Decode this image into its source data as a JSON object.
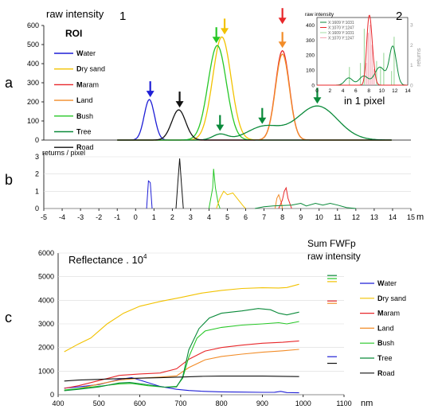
{
  "panel_labels": {
    "a": "a",
    "b": "b",
    "c": "c",
    "one": "1",
    "two": "2"
  },
  "roi_title": "ROI",
  "roi_legend": [
    {
      "first": "W",
      "rest": "ater",
      "color": "#1f1fd6"
    },
    {
      "first": "D",
      "rest": "ry sand",
      "color": "#f2c200"
    },
    {
      "first": "M",
      "rest": "aram",
      "color": "#e8272a"
    },
    {
      "first": "L",
      "rest": "and",
      "color": "#f28c28"
    },
    {
      "first": "B",
      "rest": "ush",
      "color": "#26c726"
    },
    {
      "first": "T",
      "rest": "ree",
      "color": "#0a8a3a"
    },
    {
      "first": "R",
      "rest": "oad",
      "color": "#111111"
    }
  ],
  "sum_title_line1": "Sum FWFp",
  "sum_title_line2": "raw intensity",
  "inset_caption": "in 1 pixel",
  "chart_data": [
    {
      "id": "a",
      "type": "line",
      "ylabel": "raw intensity",
      "xlim": [
        -5,
        15
      ],
      "ylim": [
        0,
        600
      ],
      "yticks": [
        0,
        100,
        200,
        300,
        400,
        500,
        600
      ],
      "series": [
        {
          "name": "Water",
          "color": "#1f1fd6",
          "peaks": [
            [
              0.75,
              212,
              0.28
            ]
          ]
        },
        {
          "name": "Dry sand",
          "color": "#f2c200",
          "peaks": [
            [
              4.7,
              540,
              0.5
            ]
          ]
        },
        {
          "name": "Maram",
          "color": "#e8272a",
          "peaks": [
            [
              8.0,
              468,
              0.38
            ]
          ]
        },
        {
          "name": "Land",
          "color": "#f28c28",
          "peaks": [
            [
              8.0,
              450,
              0.38
            ]
          ]
        },
        {
          "name": "Bush",
          "color": "#26c726",
          "peaks": [
            [
              4.45,
              495,
              0.5
            ]
          ]
        },
        {
          "name": "Tree",
          "color": "#0a8a3a",
          "peaks": [
            [
              4.6,
              30,
              0.4
            ],
            [
              7.0,
              70,
              0.9
            ],
            [
              9.9,
              178,
              1.1
            ]
          ]
        },
        {
          "name": "Road",
          "color": "#111111",
          "peaks": [
            [
              2.35,
              158,
              0.38
            ]
          ]
        }
      ],
      "arrows": [
        {
          "x": 0.8,
          "y": 212,
          "color": "#1f1fd6"
        },
        {
          "x": 2.4,
          "y": 158,
          "color": "#111111"
        },
        {
          "x": 4.4,
          "y": 495,
          "color": "#26c726"
        },
        {
          "x": 4.85,
          "y": 540,
          "color": "#f2c200"
        },
        {
          "x": 8.0,
          "y": 595,
          "color": "#e8272a"
        },
        {
          "x": 8.0,
          "y": 470,
          "color": "#f28c28"
        },
        {
          "x": 4.6,
          "y": 35,
          "color": "#0a8a3a"
        },
        {
          "x": 6.9,
          "y": 72,
          "color": "#0a8a3a"
        },
        {
          "x": 9.9,
          "y": 178,
          "color": "#0a8a3a"
        }
      ]
    },
    {
      "id": "inset",
      "type": "line",
      "ylabel": "raw intensity",
      "ylabel2": "returns",
      "xlim": [
        0,
        14
      ],
      "ylim": [
        0,
        450
      ],
      "y2lim": [
        0,
        3
      ],
      "xticks": [
        0,
        2,
        4,
        6,
        8,
        10,
        12,
        14
      ],
      "yticks": [
        0,
        100,
        200,
        300,
        400
      ],
      "y2ticks": [
        0,
        1,
        2,
        3
      ],
      "legend": [
        {
          "name": "X:1609 Y:1031",
          "color": "#0a8a3a"
        },
        {
          "name": "X:1070 Y:1247",
          "color": "#e8272a"
        },
        {
          "name": "X:1609 Y:1031",
          "color": "#a4dca4"
        },
        {
          "name": "X:1070 Y:1247",
          "color": "#f4a8b4"
        }
      ],
      "series": [
        {
          "name": "X:1609 Y:1031",
          "color": "#0a8a3a",
          "peaks": [
            [
              4.9,
              48,
              0.6
            ],
            [
              7.2,
              60,
              0.7
            ],
            [
              9.7,
              120,
              0.8
            ],
            [
              11.7,
              255,
              0.55
            ]
          ]
        },
        {
          "name": "X:1070 Y:1247",
          "color": "#e8272a",
          "peaks": [
            [
              8.0,
              310,
              0.35
            ],
            [
              8.4,
              200,
              0.4
            ],
            [
              7.7,
              40,
              0.3
            ]
          ]
        }
      ],
      "returns_pink": [
        [
          7.6,
          1.1
        ],
        [
          7.9,
          2.6
        ],
        [
          8.2,
          3.0
        ],
        [
          8.5,
          2.0
        ],
        [
          8.8,
          0.8
        ]
      ],
      "returns_green": [
        [
          5.0,
          0.9
        ],
        [
          6.7,
          1.1
        ],
        [
          7.3,
          2.8
        ],
        [
          9.2,
          1.2
        ],
        [
          9.8,
          0.9
        ],
        [
          10.3,
          1.6
        ],
        [
          11.5,
          0.7
        ],
        [
          11.9,
          2.4
        ]
      ]
    },
    {
      "id": "b",
      "type": "line",
      "ylabel": "returns / pixel",
      "xlabel": "m",
      "xlim": [
        -5,
        15
      ],
      "ylim": [
        0,
        3
      ],
      "xticks": [
        -5,
        -4,
        -3,
        -2,
        -1,
        0,
        1,
        2,
        3,
        4,
        5,
        6,
        7,
        8,
        9,
        10,
        11,
        12,
        13,
        14,
        15
      ],
      "yticks": [
        0,
        1,
        2,
        3
      ],
      "series": [
        {
          "name": "Water",
          "color": "#1f1fd6",
          "points": [
            [
              0.6,
              0
            ],
            [
              0.7,
              1.6
            ],
            [
              0.8,
              1.5
            ],
            [
              0.9,
              0
            ]
          ]
        },
        {
          "name": "Road",
          "color": "#111111",
          "points": [
            [
              2.2,
              0
            ],
            [
              2.3,
              1.5
            ],
            [
              2.4,
              2.9
            ],
            [
              2.5,
              1.4
            ],
            [
              2.6,
              0
            ]
          ]
        },
        {
          "name": "Bush",
          "color": "#26c726",
          "points": [
            [
              4.0,
              0
            ],
            [
              4.2,
              1.2
            ],
            [
              4.25,
              2.3
            ],
            [
              4.35,
              1.2
            ],
            [
              4.5,
              0.3
            ],
            [
              4.6,
              0
            ]
          ]
        },
        {
          "name": "Dry sand",
          "color": "#f2c200",
          "points": [
            [
              4.4,
              0
            ],
            [
              4.6,
              0.6
            ],
            [
              4.8,
              1.0
            ],
            [
              5.0,
              0.8
            ],
            [
              5.3,
              0.9
            ],
            [
              5.6,
              0.5
            ],
            [
              5.9,
              0.1
            ],
            [
              6.0,
              0
            ]
          ]
        },
        {
          "name": "Land",
          "color": "#f28c28",
          "points": [
            [
              7.6,
              0
            ],
            [
              7.7,
              0.6
            ],
            [
              7.8,
              0.8
            ],
            [
              7.95,
              0.3
            ],
            [
              8.0,
              0
            ]
          ]
        },
        {
          "name": "Maram",
          "color": "#e8272a",
          "points": [
            [
              7.8,
              0
            ],
            [
              8.0,
              0.5
            ],
            [
              8.1,
              1.0
            ],
            [
              8.2,
              1.2
            ],
            [
              8.3,
              0.6
            ],
            [
              8.5,
              0
            ]
          ]
        },
        {
          "name": "Tree",
          "color": "#0a8a3a",
          "points": [
            [
              6.5,
              0
            ],
            [
              7.0,
              0.1
            ],
            [
              7.5,
              0.15
            ],
            [
              8.5,
              0.2
            ],
            [
              9.0,
              0.3
            ],
            [
              9.3,
              0.15
            ],
            [
              9.8,
              0.3
            ],
            [
              10.2,
              0.2
            ],
            [
              10.6,
              0.3
            ],
            [
              11.0,
              0.2
            ],
            [
              11.5,
              0.05
            ],
            [
              12,
              0
            ]
          ]
        }
      ]
    },
    {
      "id": "c",
      "type": "line",
      "title": "Reflectance . 10",
      "title_sup": "4",
      "xlabel": "nm",
      "xlim": [
        400,
        1100
      ],
      "ylim": [
        0,
        6000
      ],
      "xticks": [
        400,
        500,
        600,
        700,
        800,
        900,
        1000,
        1100
      ],
      "yticks": [
        0,
        1000,
        2000,
        3000,
        4000,
        5000,
        6000
      ],
      "series": [
        {
          "name": "Water",
          "color": "#1f1fd6",
          "points": [
            [
              415,
              280
            ],
            [
              450,
              330
            ],
            [
              500,
              430
            ],
            [
              550,
              650
            ],
            [
              580,
              720
            ],
            [
              600,
              620
            ],
            [
              650,
              350
            ],
            [
              690,
              230
            ],
            [
              720,
              180
            ],
            [
              750,
              150
            ],
            [
              800,
              120
            ],
            [
              850,
              110
            ],
            [
              900,
              100
            ],
            [
              930,
              105
            ],
            [
              945,
              140
            ],
            [
              960,
              90
            ],
            [
              990,
              80
            ]
          ],
          "sum_y": 1610
        },
        {
          "name": "Dry sand",
          "color": "#f2c200",
          "points": [
            [
              415,
              1820
            ],
            [
              450,
              2150
            ],
            [
              480,
              2400
            ],
            [
              520,
              3000
            ],
            [
              560,
              3450
            ],
            [
              600,
              3750
            ],
            [
              650,
              3950
            ],
            [
              700,
              4120
            ],
            [
              750,
              4300
            ],
            [
              800,
              4420
            ],
            [
              850,
              4500
            ],
            [
              900,
              4530
            ],
            [
              940,
              4520
            ],
            [
              960,
              4540
            ],
            [
              990,
              4680
            ]
          ],
          "sum_y": 4790
        },
        {
          "name": "Maram",
          "color": "#e8272a",
          "points": [
            [
              415,
              270
            ],
            [
              450,
              380
            ],
            [
              500,
              600
            ],
            [
              550,
              820
            ],
            [
              600,
              880
            ],
            [
              650,
              920
            ],
            [
              690,
              1100
            ],
            [
              720,
              1500
            ],
            [
              760,
              1850
            ],
            [
              800,
              2000
            ],
            [
              850,
              2100
            ],
            [
              900,
              2180
            ],
            [
              950,
              2220
            ],
            [
              990,
              2280
            ]
          ],
          "sum_y": 3970
        },
        {
          "name": "Land",
          "color": "#f28c28",
          "points": [
            [
              415,
              180
            ],
            [
              450,
              260
            ],
            [
              500,
              450
            ],
            [
              550,
              620
            ],
            [
              600,
              700
            ],
            [
              650,
              750
            ],
            [
              690,
              800
            ],
            [
              720,
              1150
            ],
            [
              760,
              1480
            ],
            [
              800,
              1620
            ],
            [
              850,
              1720
            ],
            [
              900,
              1800
            ],
            [
              950,
              1860
            ],
            [
              990,
              1920
            ]
          ],
          "sum_y": 3870
        },
        {
          "name": "Bush",
          "color": "#26c726",
          "points": [
            [
              415,
              200
            ],
            [
              450,
              260
            ],
            [
              500,
              360
            ],
            [
              550,
              460
            ],
            [
              580,
              480
            ],
            [
              620,
              380
            ],
            [
              660,
              320
            ],
            [
              690,
              350
            ],
            [
              705,
              700
            ],
            [
              720,
              1600
            ],
            [
              740,
              2400
            ],
            [
              760,
              2700
            ],
            [
              800,
              2850
            ],
            [
              850,
              2950
            ],
            [
              900,
              3000
            ],
            [
              940,
              3050
            ],
            [
              960,
              3000
            ],
            [
              990,
              3100
            ]
          ],
          "sum_y": 4920
        },
        {
          "name": "Tree",
          "color": "#0a8a3a",
          "points": [
            [
              415,
              170
            ],
            [
              450,
              230
            ],
            [
              500,
              330
            ],
            [
              550,
              500
            ],
            [
              575,
              520
            ],
            [
              620,
              420
            ],
            [
              660,
              320
            ],
            [
              690,
              330
            ],
            [
              705,
              750
            ],
            [
              720,
              1900
            ],
            [
              745,
              2800
            ],
            [
              770,
              3250
            ],
            [
              800,
              3450
            ],
            [
              850,
              3550
            ],
            [
              890,
              3650
            ],
            [
              920,
              3600
            ],
            [
              940,
              3450
            ],
            [
              960,
              3380
            ],
            [
              990,
              3500
            ]
          ],
          "sum_y": 5050
        },
        {
          "name": "Road",
          "color": "#111111",
          "points": [
            [
              415,
              580
            ],
            [
              450,
              620
            ],
            [
              500,
              650
            ],
            [
              550,
              680
            ],
            [
              600,
              700
            ],
            [
              650,
              720
            ],
            [
              700,
              750
            ],
            [
              750,
              780
            ],
            [
              800,
              790
            ],
            [
              850,
              790
            ],
            [
              900,
              790
            ],
            [
              950,
              780
            ],
            [
              990,
              770
            ]
          ],
          "sum_y": 1330
        }
      ]
    }
  ]
}
